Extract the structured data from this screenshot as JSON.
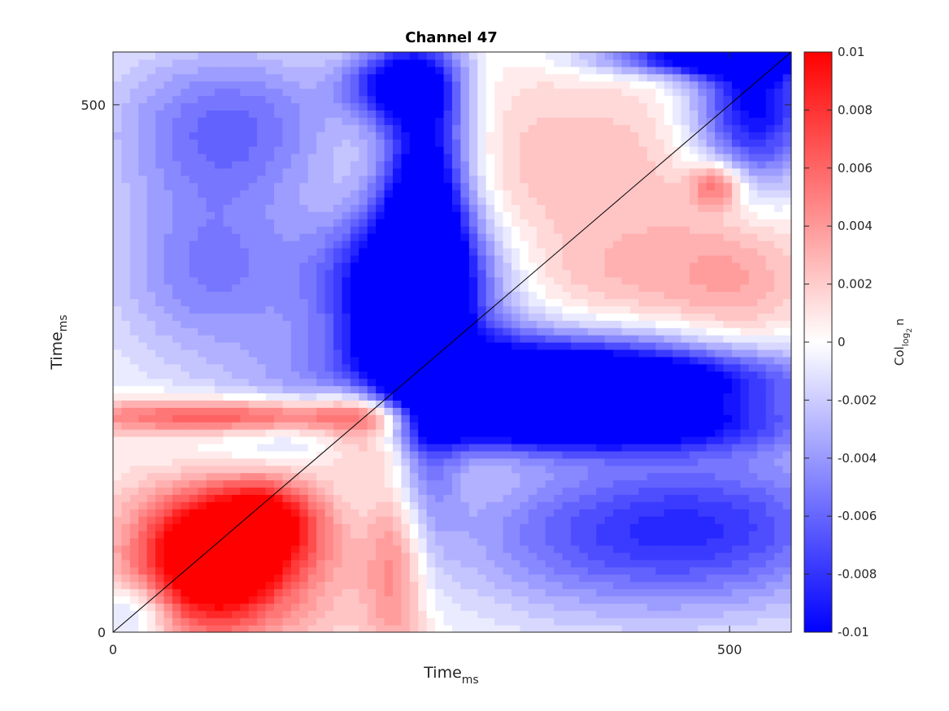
{
  "chart_data": {
    "type": "heatmap",
    "title": "Channel 47",
    "xlabel": {
      "text": "Time",
      "subscript": "ms"
    },
    "ylabel": {
      "text": "Time",
      "subscript": "ms"
    },
    "xlim": [
      0,
      550
    ],
    "ylim": [
      0,
      550
    ],
    "xticks": [
      0,
      500
    ],
    "yticks": [
      0,
      500
    ],
    "xtick_labels": [
      "0",
      "500"
    ],
    "ytick_labels": [
      "0",
      "500"
    ],
    "diagonal_line": true,
    "colorbar": {
      "label": {
        "text": "Col",
        "subscript": "log",
        "sub2": "2",
        "tail": "n"
      },
      "limits": [
        -0.01,
        0.01
      ],
      "ticks": [
        0.01,
        0.008,
        0.006,
        0.004,
        0.002,
        0,
        -0.002,
        -0.004,
        -0.006,
        -0.008,
        -0.01
      ],
      "tick_labels": [
        "0.01",
        "0.008",
        "0.006",
        "0.004",
        "0.002",
        "0",
        "-0.002",
        "-0.004",
        "-0.006",
        "-0.008",
        "-0.01"
      ],
      "colormap": {
        "low": "#0000ff",
        "mid": "#ffffff",
        "high": "#ff0000"
      }
    },
    "regions": [
      {
        "x": 240,
        "y": 330,
        "sx": 50,
        "sy": 50,
        "v": -0.012
      },
      {
        "x": 240,
        "y": 230,
        "sx": 25,
        "sy": 100,
        "v": -0.012
      },
      {
        "x": 325,
        "y": 240,
        "sx": 110,
        "sy": 32,
        "v": -0.012
      },
      {
        "x": 385,
        "y": 195,
        "sx": 120,
        "sy": 18,
        "v": -0.009
      },
      {
        "x": 450,
        "y": 240,
        "sx": 100,
        "sy": 22,
        "v": -0.007
      },
      {
        "x": 255,
        "y": 430,
        "sx": 25,
        "sy": 90,
        "v": -0.011
      },
      {
        "x": 230,
        "y": 520,
        "sx": 30,
        "sy": 25,
        "v": -0.009
      },
      {
        "x": 520,
        "y": 500,
        "sx": 35,
        "sy": 60,
        "v": -0.011
      },
      {
        "x": 480,
        "y": 545,
        "sx": 60,
        "sy": 12,
        "v": -0.011
      },
      {
        "x": 95,
        "y": 480,
        "sx": 70,
        "sy": 55,
        "v": -0.006
      },
      {
        "x": 80,
        "y": 340,
        "sx": 60,
        "sy": 60,
        "v": -0.005
      },
      {
        "x": 490,
        "y": 100,
        "sx": 90,
        "sy": 55,
        "v": -0.007
      },
      {
        "x": 350,
        "y": 90,
        "sx": 90,
        "sy": 55,
        "v": -0.004
      },
      {
        "x": 510,
        "y": 340,
        "sx": 40,
        "sy": 60,
        "v": 0.0025
      },
      {
        "x": 380,
        "y": 440,
        "sx": 120,
        "sy": 70,
        "v": 0.0025
      },
      {
        "x": 420,
        "y": 330,
        "sx": 70,
        "sy": 40,
        "v": 0.002
      },
      {
        "x": 115,
        "y": 205,
        "sx": 105,
        "sy": 12,
        "v": 0.008
      },
      {
        "x": 230,
        "y": 110,
        "sx": 18,
        "sy": 90,
        "v": 0.007
      },
      {
        "x": 80,
        "y": 70,
        "sx": 40,
        "sy": 45,
        "v": 0.012
      },
      {
        "x": 125,
        "y": 110,
        "sx": 30,
        "sy": 30,
        "v": 0.007
      },
      {
        "x": 215,
        "y": 200,
        "sx": 30,
        "sy": 30,
        "v": 0.009
      },
      {
        "x": 130,
        "y": 80,
        "sx": 95,
        "sy": 70,
        "v": 0.004
      },
      {
        "x": 120,
        "y": 160,
        "sx": 55,
        "sy": 35,
        "v": -0.003
      },
      {
        "x": 20,
        "y": 20,
        "sx": 20,
        "sy": 20,
        "v": -0.004
      },
      {
        "x": 490,
        "y": 425,
        "sx": 15,
        "sy": 15,
        "v": 0.006
      }
    ]
  }
}
